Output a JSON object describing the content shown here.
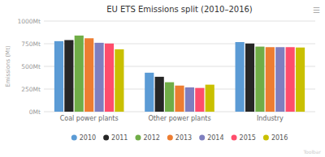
{
  "chart_data": {
    "type": "bar",
    "title": "EU ETS Emissions split (2010–2016)",
    "ylabel": "Emissions (Mt)",
    "categories": [
      "Coal power plants",
      "Other power plants",
      "Industry"
    ],
    "series": [
      {
        "name": "2010",
        "color": "#5b9bd5",
        "values": [
          778,
          430,
          768
        ]
      },
      {
        "name": "2011",
        "color": "#262626",
        "values": [
          790,
          385,
          752
        ]
      },
      {
        "name": "2012",
        "color": "#70ad47",
        "values": [
          840,
          325,
          718
        ]
      },
      {
        "name": "2013",
        "color": "#ed7d31",
        "values": [
          810,
          288,
          712
        ]
      },
      {
        "name": "2014",
        "color": "#7f7fbf",
        "values": [
          760,
          268,
          712
        ]
      },
      {
        "name": "2015",
        "color": "#ff4d6b",
        "values": [
          752,
          262,
          712
        ]
      },
      {
        "name": "2016",
        "color": "#c9c000",
        "values": [
          688,
          298,
          708
        ]
      }
    ],
    "ylim": [
      0,
      1000
    ],
    "yticks": [
      {
        "value": 0,
        "label": "0Mt"
      },
      {
        "value": 250,
        "label": "250Mt"
      },
      {
        "value": 500,
        "label": "500Mt"
      },
      {
        "value": 750,
        "label": "750Mt"
      },
      {
        "value": 1000,
        "label": "1000Mt"
      }
    ],
    "grid": true,
    "legend": "bottom",
    "annotations": [
      "☰",
      "Toolbar"
    ]
  }
}
